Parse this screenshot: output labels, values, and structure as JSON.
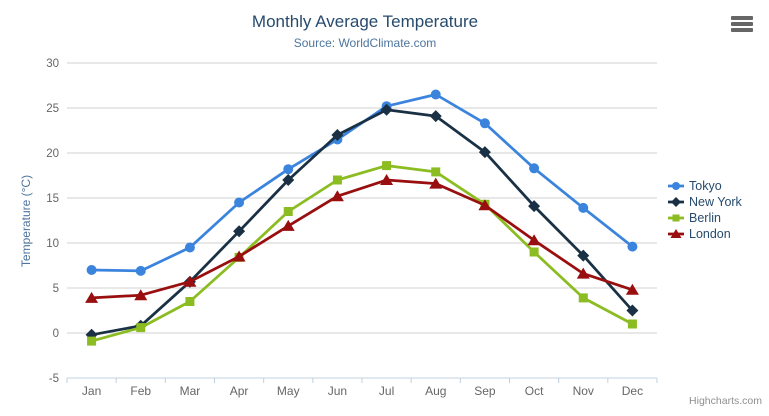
{
  "chart": {
    "title": "Monthly Average Temperature",
    "subtitle": "Source: WorldClimate.com",
    "y_axis_title": "Temperature (°C)",
    "credits": "Highcharts.com",
    "export_icon": "hamburger-menu-icon"
  },
  "colors": {
    "title": "#274b6d",
    "subtitle": "#4d759e",
    "axis_title": "#4d759e",
    "axis_labels": "#666666",
    "gridline": "#d0d0d0",
    "axis_line": "#c0d0e0",
    "legend_text": "#274b6d",
    "credits": "#8f8f8f",
    "export_icon": "#666666"
  },
  "chart_data": {
    "type": "line",
    "title": "Monthly Average Temperature",
    "subtitle": "Source: WorldClimate.com",
    "xlabel": "",
    "ylabel": "Temperature (°C)",
    "ylim": [
      -5,
      30
    ],
    "y_tick_interval": 5,
    "y_tick_labels": [
      "-5",
      "0",
      "5",
      "10",
      "15",
      "20",
      "25",
      "30"
    ],
    "grid": "horizontal",
    "legend_position": "right",
    "categories": [
      "Jan",
      "Feb",
      "Mar",
      "Apr",
      "May",
      "Jun",
      "Jul",
      "Aug",
      "Sep",
      "Oct",
      "Nov",
      "Dec"
    ],
    "series": [
      {
        "name": "Tokyo",
        "color": "#3b84de",
        "marker": "circle",
        "values": [
          7.0,
          6.9,
          9.5,
          14.5,
          18.2,
          21.5,
          25.2,
          26.5,
          23.3,
          18.3,
          13.9,
          9.6
        ]
      },
      {
        "name": "New York",
        "color": "#1a3044",
        "marker": "diamond",
        "values": [
          -0.2,
          0.8,
          5.7,
          11.3,
          17.0,
          22.0,
          24.8,
          24.1,
          20.1,
          14.1,
          8.6,
          2.5
        ]
      },
      {
        "name": "Berlin",
        "color": "#8bbc21",
        "marker": "square",
        "values": [
          -0.9,
          0.6,
          3.5,
          8.4,
          13.5,
          17.0,
          18.6,
          17.9,
          14.3,
          9.0,
          3.9,
          1.0
        ]
      },
      {
        "name": "London",
        "color": "#990f0f",
        "marker": "triangle",
        "values": [
          3.9,
          4.2,
          5.7,
          8.5,
          11.9,
          15.2,
          17.0,
          16.6,
          14.2,
          10.3,
          6.6,
          4.8
        ]
      }
    ]
  }
}
